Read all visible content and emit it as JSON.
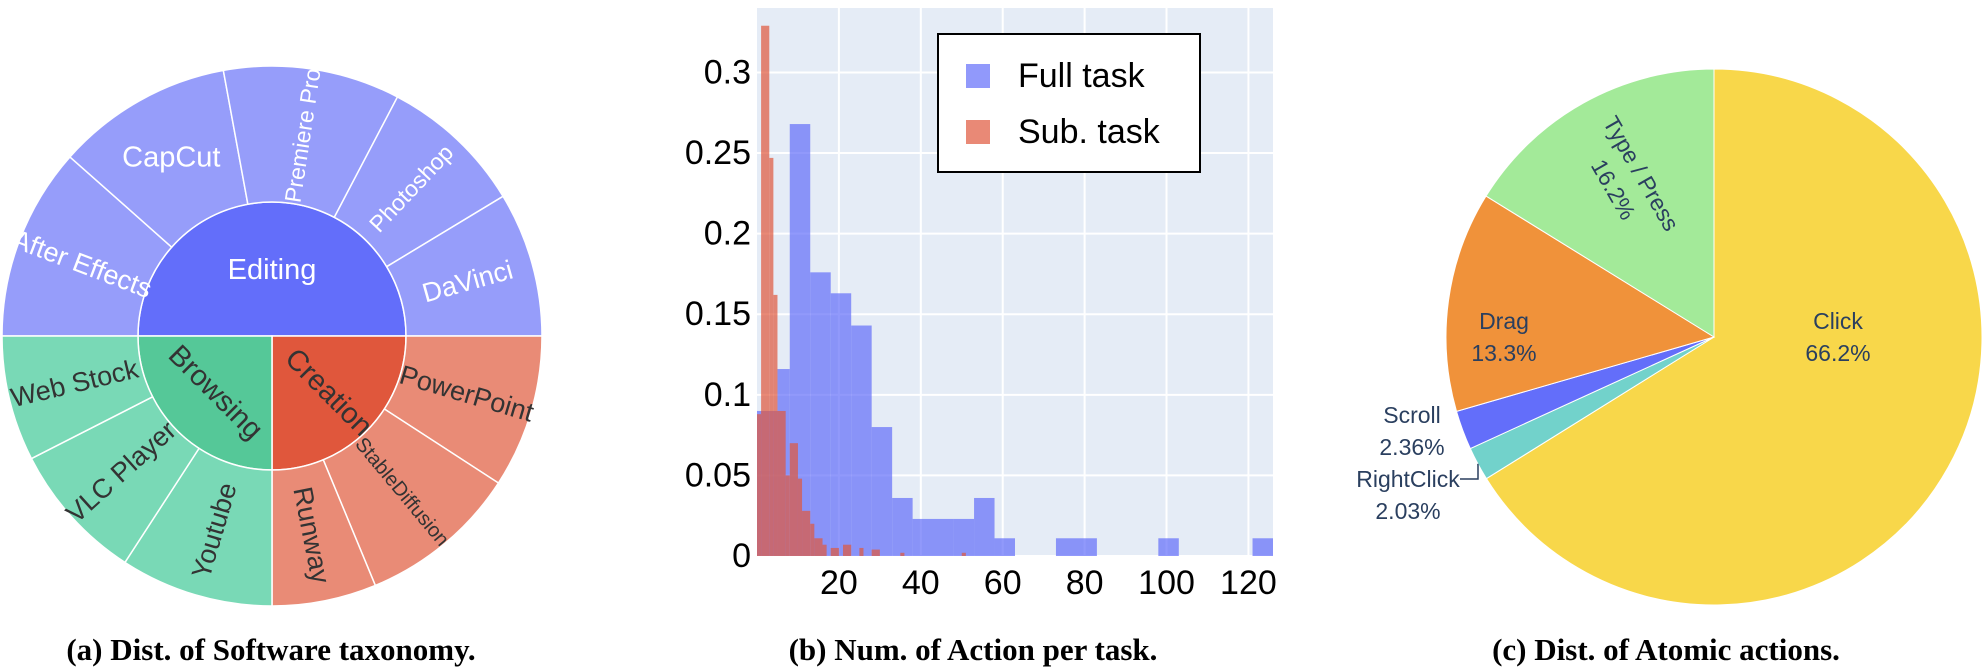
{
  "captions": {
    "a": "(a) Dist. of Software taxonomy.",
    "b": "(b) Num. of Action per task.",
    "c": "(c) Dist. of Atomic actions."
  },
  "chart_data": [
    {
      "type": "sunburst",
      "title": "",
      "inner": [
        {
          "label": "Editing",
          "color": "#636efa",
          "text_color": "#ffffff",
          "value": 6
        },
        {
          "label": "Creation",
          "color": "#e0573c",
          "text_color": "#333333",
          "value": 3
        },
        {
          "label": "Browsing",
          "color": "#55c898",
          "text_color": "#333333",
          "value": 3
        }
      ],
      "outer": [
        {
          "label": "After Effects",
          "parent": "Editing",
          "value": 1.2
        },
        {
          "label": "CapCut",
          "parent": "Editing",
          "value": 1.1
        },
        {
          "label": "Premiere Pro",
          "parent": "Editing",
          "value": 1.1
        },
        {
          "label": "Photoshop",
          "parent": "Editing",
          "value": 0.9
        },
        {
          "label": "DaVinci",
          "parent": "Editing",
          "value": 0.9
        },
        {
          "label": "PowerPoint",
          "parent": "Creation",
          "value": 1.1
        },
        {
          "label": "StableDiffusion",
          "parent": "Creation",
          "value": 1.15
        },
        {
          "label": "Runway",
          "parent": "Creation",
          "value": 0.75
        },
        {
          "label": "Youtube",
          "parent": "Browsing",
          "value": 1.1
        },
        {
          "label": "VLC Player",
          "parent": "Browsing",
          "value": 1.0
        },
        {
          "label": "Web Stock",
          "parent": "Browsing",
          "value": 0.9
        }
      ],
      "outer_colors": {
        "Editing": "#969dfa",
        "Creation": "#e98b76",
        "Browsing": "#79d9b6"
      }
    },
    {
      "type": "histogram",
      "title": "",
      "xlabel": "",
      "ylabel": "",
      "xlim": [
        0,
        126
      ],
      "ylim": [
        0,
        0.34
      ],
      "xticks": [
        20,
        40,
        60,
        80,
        100,
        120
      ],
      "yticks": [
        0,
        0.05,
        0.1,
        0.15,
        0.2,
        0.25,
        0.3
      ],
      "legend_position": "top-right",
      "series": [
        {
          "name": "Full task",
          "color": "#636efa",
          "bins": [
            {
              "x0": 0,
              "x1": 5,
              "y": 0.09
            },
            {
              "x0": 5,
              "x1": 8,
              "y": 0.116
            },
            {
              "x0": 8,
              "x1": 13,
              "y": 0.268
            },
            {
              "x0": 13,
              "x1": 18,
              "y": 0.176
            },
            {
              "x0": 18,
              "x1": 23,
              "y": 0.163
            },
            {
              "x0": 23,
              "x1": 28,
              "y": 0.143
            },
            {
              "x0": 28,
              "x1": 33,
              "y": 0.08
            },
            {
              "x0": 33,
              "x1": 38,
              "y": 0.036
            },
            {
              "x0": 38,
              "x1": 48,
              "y": 0.023
            },
            {
              "x0": 48,
              "x1": 53,
              "y": 0.023
            },
            {
              "x0": 53,
              "x1": 58,
              "y": 0.036
            },
            {
              "x0": 58,
              "x1": 63,
              "y": 0.011
            },
            {
              "x0": 73,
              "x1": 83,
              "y": 0.011
            },
            {
              "x0": 98,
              "x1": 103,
              "y": 0.011
            },
            {
              "x0": 121,
              "x1": 126,
              "y": 0.011
            }
          ]
        },
        {
          "name": "Sub. task",
          "color": "#e0573c",
          "bins": [
            {
              "x0": 0,
              "x1": 1,
              "y": 0.088
            },
            {
              "x0": 1,
              "x1": 3,
              "y": 0.329
            },
            {
              "x0": 3,
              "x1": 4,
              "y": 0.247
            },
            {
              "x0": 4,
              "x1": 5,
              "y": 0.162
            },
            {
              "x0": 5,
              "x1": 7,
              "y": 0.09
            },
            {
              "x0": 7,
              "x1": 8,
              "y": 0.05
            },
            {
              "x0": 8,
              "x1": 10,
              "y": 0.07
            },
            {
              "x0": 10,
              "x1": 11,
              "y": 0.048
            },
            {
              "x0": 11,
              "x1": 13,
              "y": 0.028
            },
            {
              "x0": 13,
              "x1": 14,
              "y": 0.02
            },
            {
              "x0": 14,
              "x1": 16,
              "y": 0.011
            },
            {
              "x0": 16,
              "x1": 17,
              "y": 0.007
            },
            {
              "x0": 18,
              "x1": 20,
              "y": 0.005
            },
            {
              "x0": 21,
              "x1": 23,
              "y": 0.007
            },
            {
              "x0": 25,
              "x1": 26,
              "y": 0.005
            },
            {
              "x0": 28,
              "x1": 30,
              "y": 0.004
            },
            {
              "x0": 35,
              "x1": 36,
              "y": 0.002
            },
            {
              "x0": 50,
              "x1": 51,
              "y": 0.002
            }
          ]
        }
      ]
    },
    {
      "type": "pie",
      "title": "",
      "slices": [
        {
          "label": "Click",
          "pct_text": "66.2%",
          "value": 66.2,
          "color": "#f8d74a"
        },
        {
          "label": "RightClick",
          "pct_text": "2.03%",
          "value": 2.03,
          "color": "#72d2cb"
        },
        {
          "label": "Scroll",
          "pct_text": "2.36%",
          "value": 2.36,
          "color": "#636efa"
        },
        {
          "label": "Drag",
          "pct_text": "13.3%",
          "value": 13.3,
          "color": "#f0923a"
        },
        {
          "label": "Type / Press",
          "pct_text": "16.2%",
          "value": 16.2,
          "color": "#a3ea99"
        }
      ]
    }
  ]
}
